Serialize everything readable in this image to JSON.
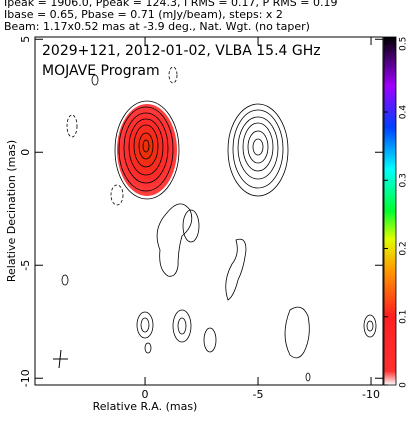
{
  "chart_data": {
    "type": "contour",
    "header": [
      "Ipeak = 1906.0, Ppeak = 124.3, I RMS = 0.17, P RMS = 0.19",
      "Ibase = 0.65, Pbase = 0.71 (mJy/beam), steps: x 2",
      "Beam: 1.17x0.52 mas at -3.9 deg., Nat. Wgt. (no taper)"
    ],
    "title": "2029+121, 2012-01-02, VLBA 15.4 GHz",
    "subtitle": "MOJAVE Program",
    "xlabel": "Relative R.A. (mas)",
    "ylabel": "Relative Decination (mas)",
    "xlim": [
      4.87,
      -10.53
    ],
    "xticks": [
      0,
      -5,
      -10
    ],
    "ylim": [
      -10.3,
      5.1
    ],
    "yticks": [
      5,
      0,
      -5,
      -10
    ],
    "clim": [
      0,
      0.51
    ],
    "cticks": [
      0,
      0.1,
      0.2,
      0.3,
      0.4,
      0.5
    ]
  }
}
